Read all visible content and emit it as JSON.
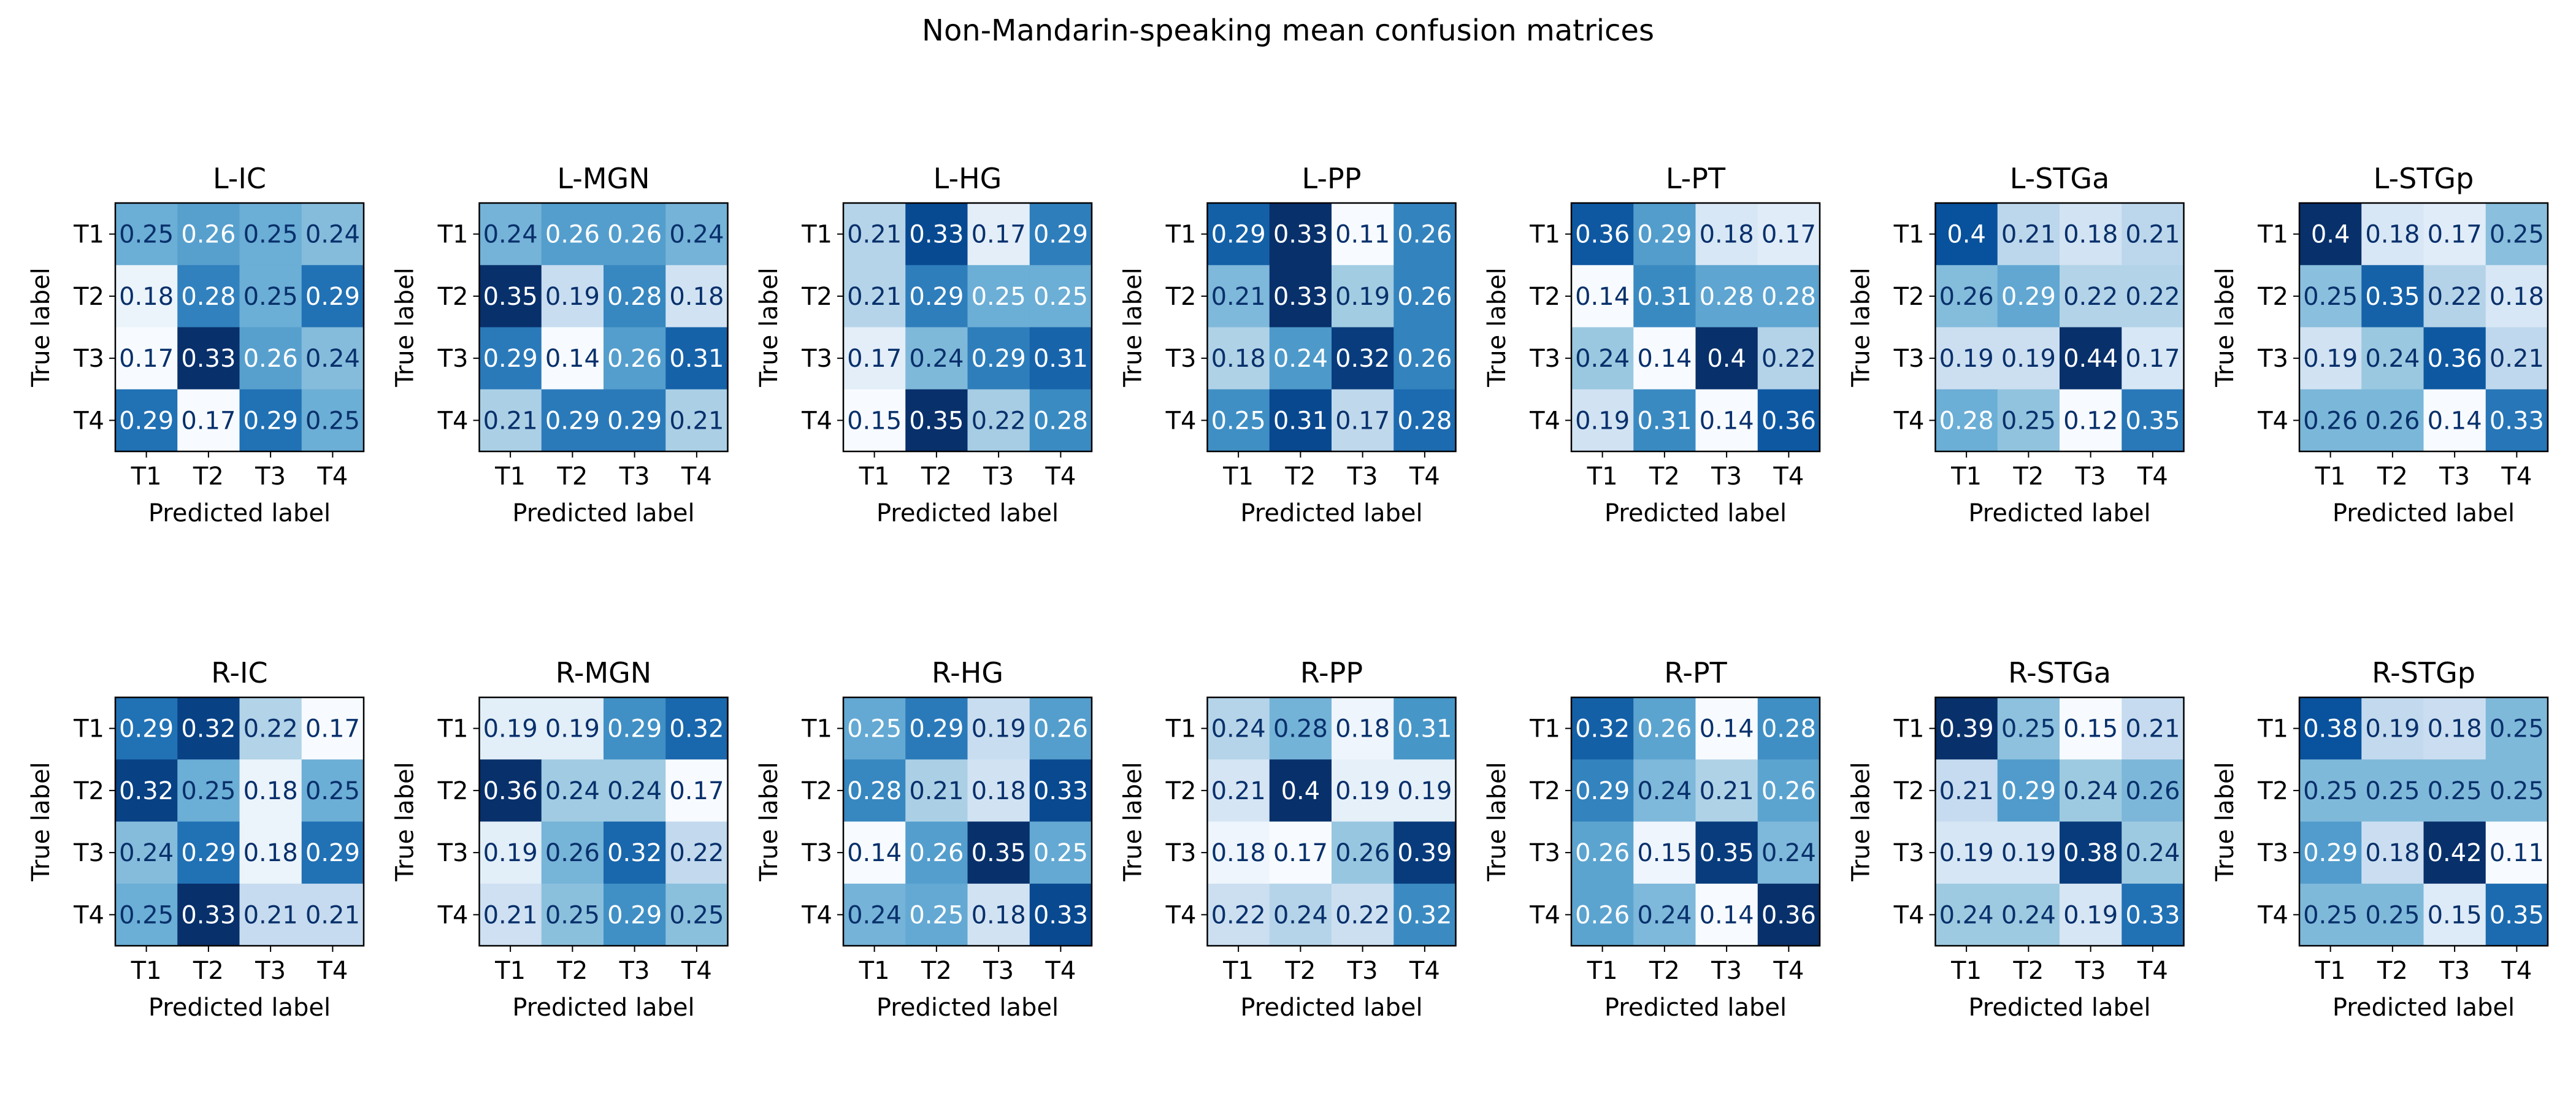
{
  "figure": {
    "title": "Non-Mandarin-speaking mean confusion matrices"
  },
  "chart_data": [
    {
      "type": "heatmap",
      "title": "L-IC",
      "xlabel": "Predicted label",
      "ylabel": "True label",
      "x_ticks": [
        "T1",
        "T2",
        "T3",
        "T4"
      ],
      "y_ticks": [
        "T1",
        "T2",
        "T3",
        "T4"
      ],
      "values": [
        [
          0.25,
          0.26,
          0.25,
          0.24
        ],
        [
          0.18,
          0.28,
          0.25,
          0.29
        ],
        [
          0.17,
          0.33,
          0.26,
          0.24
        ],
        [
          0.29,
          0.17,
          0.29,
          0.25
        ]
      ]
    },
    {
      "type": "heatmap",
      "title": "L-MGN",
      "xlabel": "Predicted label",
      "ylabel": "True label",
      "x_ticks": [
        "T1",
        "T2",
        "T3",
        "T4"
      ],
      "y_ticks": [
        "T1",
        "T2",
        "T3",
        "T4"
      ],
      "values": [
        [
          0.24,
          0.26,
          0.26,
          0.24
        ],
        [
          0.35,
          0.19,
          0.28,
          0.18
        ],
        [
          0.29,
          0.14,
          0.26,
          0.31
        ],
        [
          0.21,
          0.29,
          0.29,
          0.21
        ]
      ]
    },
    {
      "type": "heatmap",
      "title": "L-HG",
      "xlabel": "Predicted label",
      "ylabel": "True label",
      "x_ticks": [
        "T1",
        "T2",
        "T3",
        "T4"
      ],
      "y_ticks": [
        "T1",
        "T2",
        "T3",
        "T4"
      ],
      "values": [
        [
          0.21,
          0.33,
          0.17,
          0.29
        ],
        [
          0.21,
          0.29,
          0.25,
          0.25
        ],
        [
          0.17,
          0.24,
          0.29,
          0.31
        ],
        [
          0.15,
          0.35,
          0.22,
          0.28
        ]
      ]
    },
    {
      "type": "heatmap",
      "title": "L-PP",
      "xlabel": "Predicted label",
      "ylabel": "True label",
      "x_ticks": [
        "T1",
        "T2",
        "T3",
        "T4"
      ],
      "y_ticks": [
        "T1",
        "T2",
        "T3",
        "T4"
      ],
      "values": [
        [
          0.29,
          0.33,
          0.11,
          0.26
        ],
        [
          0.21,
          0.33,
          0.19,
          0.26
        ],
        [
          0.18,
          0.24,
          0.32,
          0.26
        ],
        [
          0.25,
          0.31,
          0.17,
          0.28
        ]
      ]
    },
    {
      "type": "heatmap",
      "title": "L-PT",
      "xlabel": "Predicted label",
      "ylabel": "True label",
      "x_ticks": [
        "T1",
        "T2",
        "T3",
        "T4"
      ],
      "y_ticks": [
        "T1",
        "T2",
        "T3",
        "T4"
      ],
      "values": [
        [
          0.36,
          0.29,
          0.18,
          0.17
        ],
        [
          0.14,
          0.31,
          0.28,
          0.28
        ],
        [
          0.24,
          0.14,
          0.4,
          0.22
        ],
        [
          0.19,
          0.31,
          0.14,
          0.36
        ]
      ]
    },
    {
      "type": "heatmap",
      "title": "L-STGa",
      "xlabel": "Predicted label",
      "ylabel": "True label",
      "x_ticks": [
        "T1",
        "T2",
        "T3",
        "T4"
      ],
      "y_ticks": [
        "T1",
        "T2",
        "T3",
        "T4"
      ],
      "values": [
        [
          0.4,
          0.21,
          0.18,
          0.21
        ],
        [
          0.26,
          0.29,
          0.22,
          0.22
        ],
        [
          0.19,
          0.19,
          0.44,
          0.17
        ],
        [
          0.28,
          0.25,
          0.12,
          0.35
        ]
      ]
    },
    {
      "type": "heatmap",
      "title": "L-STGp",
      "xlabel": "Predicted label",
      "ylabel": "True label",
      "x_ticks": [
        "T1",
        "T2",
        "T3",
        "T4"
      ],
      "y_ticks": [
        "T1",
        "T2",
        "T3",
        "T4"
      ],
      "values": [
        [
          0.4,
          0.18,
          0.17,
          0.25
        ],
        [
          0.25,
          0.35,
          0.22,
          0.18
        ],
        [
          0.19,
          0.24,
          0.36,
          0.21
        ],
        [
          0.26,
          0.26,
          0.14,
          0.33
        ]
      ]
    },
    {
      "type": "heatmap",
      "title": "R-IC",
      "xlabel": "Predicted label",
      "ylabel": "True label",
      "x_ticks": [
        "T1",
        "T2",
        "T3",
        "T4"
      ],
      "y_ticks": [
        "T1",
        "T2",
        "T3",
        "T4"
      ],
      "values": [
        [
          0.29,
          0.32,
          0.22,
          0.17
        ],
        [
          0.32,
          0.25,
          0.18,
          0.25
        ],
        [
          0.24,
          0.29,
          0.18,
          0.29
        ],
        [
          0.25,
          0.33,
          0.21,
          0.21
        ]
      ]
    },
    {
      "type": "heatmap",
      "title": "R-MGN",
      "xlabel": "Predicted label",
      "ylabel": "True label",
      "x_ticks": [
        "T1",
        "T2",
        "T3",
        "T4"
      ],
      "y_ticks": [
        "T1",
        "T2",
        "T3",
        "T4"
      ],
      "values": [
        [
          0.19,
          0.19,
          0.29,
          0.32
        ],
        [
          0.36,
          0.24,
          0.24,
          0.17
        ],
        [
          0.19,
          0.26,
          0.32,
          0.22
        ],
        [
          0.21,
          0.25,
          0.29,
          0.25
        ]
      ]
    },
    {
      "type": "heatmap",
      "title": "R-HG",
      "xlabel": "Predicted label",
      "ylabel": "True label",
      "x_ticks": [
        "T1",
        "T2",
        "T3",
        "T4"
      ],
      "y_ticks": [
        "T1",
        "T2",
        "T3",
        "T4"
      ],
      "values": [
        [
          0.25,
          0.29,
          0.19,
          0.26
        ],
        [
          0.28,
          0.21,
          0.18,
          0.33
        ],
        [
          0.14,
          0.26,
          0.35,
          0.25
        ],
        [
          0.24,
          0.25,
          0.18,
          0.33
        ]
      ]
    },
    {
      "type": "heatmap",
      "title": "R-PP",
      "xlabel": "Predicted label",
      "ylabel": "True label",
      "x_ticks": [
        "T1",
        "T2",
        "T3",
        "T4"
      ],
      "y_ticks": [
        "T1",
        "T2",
        "T3",
        "T4"
      ],
      "values": [
        [
          0.24,
          0.28,
          0.18,
          0.31
        ],
        [
          0.21,
          0.4,
          0.19,
          0.19
        ],
        [
          0.18,
          0.17,
          0.26,
          0.39
        ],
        [
          0.22,
          0.24,
          0.22,
          0.32
        ]
      ]
    },
    {
      "type": "heatmap",
      "title": "R-PT",
      "xlabel": "Predicted label",
      "ylabel": "True label",
      "x_ticks": [
        "T1",
        "T2",
        "T3",
        "T4"
      ],
      "y_ticks": [
        "T1",
        "T2",
        "T3",
        "T4"
      ],
      "values": [
        [
          0.32,
          0.26,
          0.14,
          0.28
        ],
        [
          0.29,
          0.24,
          0.21,
          0.26
        ],
        [
          0.26,
          0.15,
          0.35,
          0.24
        ],
        [
          0.26,
          0.24,
          0.14,
          0.36
        ]
      ]
    },
    {
      "type": "heatmap",
      "title": "R-STGa",
      "xlabel": "Predicted label",
      "ylabel": "True label",
      "x_ticks": [
        "T1",
        "T2",
        "T3",
        "T4"
      ],
      "y_ticks": [
        "T1",
        "T2",
        "T3",
        "T4"
      ],
      "values": [
        [
          0.39,
          0.25,
          0.15,
          0.21
        ],
        [
          0.21,
          0.29,
          0.24,
          0.26
        ],
        [
          0.19,
          0.19,
          0.38,
          0.24
        ],
        [
          0.24,
          0.24,
          0.19,
          0.33
        ]
      ]
    },
    {
      "type": "heatmap",
      "title": "R-STGp",
      "xlabel": "Predicted label",
      "ylabel": "True label",
      "x_ticks": [
        "T1",
        "T2",
        "T3",
        "T4"
      ],
      "y_ticks": [
        "T1",
        "T2",
        "T3",
        "T4"
      ],
      "values": [
        [
          0.38,
          0.19,
          0.18,
          0.25
        ],
        [
          0.25,
          0.25,
          0.25,
          0.25
        ],
        [
          0.29,
          0.18,
          0.42,
          0.11
        ],
        [
          0.25,
          0.25,
          0.15,
          0.35
        ]
      ]
    }
  ]
}
